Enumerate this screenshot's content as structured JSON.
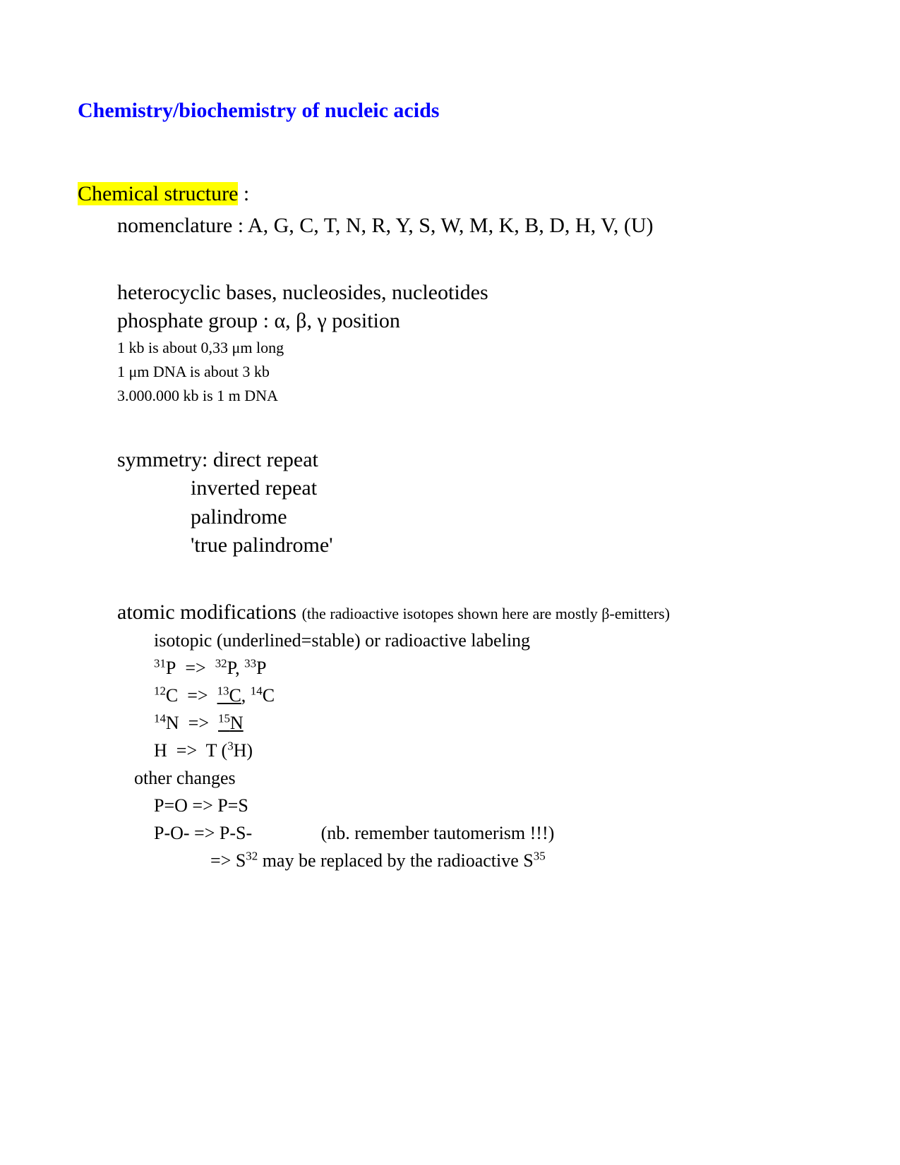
{
  "title": "Chemistry/biochemistry of nucleic acids",
  "section": {
    "heading_highlight": "Chemical structure",
    "heading_rest": " :",
    "nomenclature": "nomenclature : A, G, C, T, N, R, Y, S, W, M, K, B, D, H, V, (U)",
    "hetero": "heterocyclic bases, nucleosides, nucleotides",
    "phosphate": "phosphate group : α, β, γ position",
    "kb1": "1 kb is about 0,33 μm long",
    "kb2": "1 μm DNA is about 3 kb",
    "kb3": "3.000.000 kb is 1 m DNA",
    "sym_lead": "symmetry: direct repeat",
    "sym2": "inverted repeat",
    "sym3": "palindrome",
    "sym4": "'true palindrome'",
    "atomic_lead": "atomic modifications  ",
    "atomic_paren": "(the radioactive isotopes shown here are mostly β-emitters)",
    "iso_label": "isotopic (underlined=stable) or radioactive labeling",
    "other_label": "other changes",
    "po": "P=O   =>   P=S",
    "pos_lead": "P-O-   =>   P-S-",
    "pos_nb": "(nb. remember tautomerism !!!)"
  },
  "colors": {
    "title": "#0000ff",
    "highlight": "#ffff00",
    "text": "#000000",
    "background": "#ffffff"
  }
}
